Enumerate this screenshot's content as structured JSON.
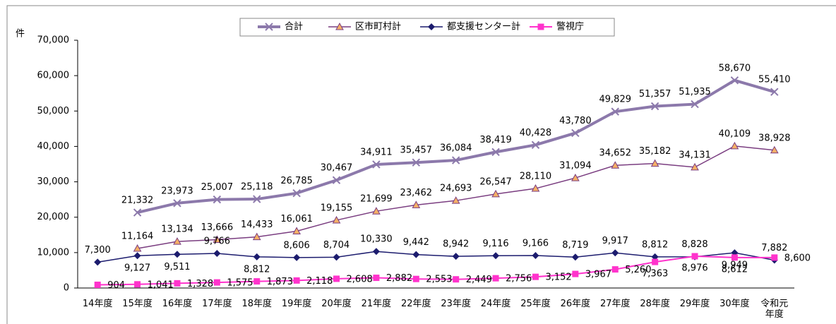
{
  "chart_data": {
    "type": "line",
    "y_label": "件",
    "categories": [
      "14年度",
      "15年度",
      "16年度",
      "17年度",
      "18年度",
      "19年度",
      "20年度",
      "21年度",
      "22年度",
      "23年度",
      "24年度",
      "25年度",
      "26年度",
      "27年度",
      "28年度",
      "29年度",
      "30年度",
      "令和元年度"
    ],
    "series": [
      {
        "name": "合計",
        "color": "#8c79ab",
        "marker": "x",
        "marker_color": "#8c79ab",
        "width": 4,
        "values": [
          null,
          21332,
          23973,
          25007,
          25118,
          26785,
          30467,
          34911,
          35457,
          36084,
          38419,
          40428,
          43780,
          49829,
          51357,
          51935,
          58670,
          55410
        ],
        "value_labels": [
          null,
          "21,332",
          "23,973",
          "25,007",
          "25,118",
          "26,785",
          "30,467",
          "34,911",
          "35,457",
          "36,084",
          "38,419",
          "40,428",
          "43,780",
          "49,829",
          "51,357",
          "51,935",
          "58,670",
          "55,410"
        ]
      },
      {
        "name": "区市町村計",
        "color": "#7a3d80",
        "marker": "triangle",
        "marker_color": "#f5b066",
        "width": 1.5,
        "values": [
          null,
          11164,
          13134,
          13666,
          14433,
          16061,
          19155,
          21699,
          23462,
          24693,
          26547,
          28110,
          31094,
          34652,
          35182,
          34131,
          40109,
          38928
        ],
        "value_labels": [
          null,
          "11,164",
          "13,134",
          "13,666",
          "14,433",
          "16,061",
          "19,155",
          "21,699",
          "23,462",
          "24,693",
          "26,547",
          "28,110",
          "31,094",
          "34,652",
          "35,182",
          "34,131",
          "40,109",
          "38,928"
        ]
      },
      {
        "name": "都支援センター計",
        "color": "#1c1c6e",
        "marker": "diamond",
        "marker_color": "#1c1c6e",
        "width": 1.5,
        "values": [
          7300,
          9127,
          9511,
          9766,
          8812,
          8606,
          8704,
          10330,
          9442,
          8942,
          9116,
          9166,
          8719,
          9917,
          8812,
          8828,
          9949,
          7882
        ],
        "value_labels": [
          "7,300",
          "9,127",
          "9,511",
          "9,766",
          "8,812",
          "8,606",
          "8,704",
          "10,330",
          "9,442",
          "8,942",
          "9,116",
          "9,166",
          "8,719",
          "9,917",
          "8,812",
          "8,828",
          "9,949",
          "7,882"
        ]
      },
      {
        "name": "警視庁",
        "color": "#ff33cc",
        "marker": "square",
        "marker_color": "#ff33cc",
        "width": 2,
        "values": [
          904,
          1041,
          1328,
          1575,
          1873,
          2118,
          2608,
          2882,
          2553,
          2449,
          2756,
          3152,
          3967,
          5260,
          7363,
          8976,
          8612,
          8600
        ],
        "value_labels": [
          "904",
          "1,041",
          "1,328",
          "1,575",
          "1,873",
          "2,118",
          "2,608",
          "2,882",
          "2,553",
          "2,449",
          "2,756",
          "3,152",
          "3,967",
          "5,260",
          "7,363",
          "8,976",
          "8,612",
          "8,600"
        ]
      }
    ],
    "ylim": [
      0,
      70000
    ],
    "yticks": [
      0,
      {
        "value": 10000,
        "label": "10,000"
      },
      {
        "value": 20000,
        "label": "20,000"
      },
      {
        "value": 30000,
        "label": "30,000"
      },
      {
        "value": 40000,
        "label": "40,000"
      },
      {
        "value": 50000,
        "label": "50,000"
      },
      {
        "value": 60000,
        "label": "60,000"
      },
      {
        "value": 70000,
        "label": "70,000"
      }
    ],
    "legend": "top"
  }
}
